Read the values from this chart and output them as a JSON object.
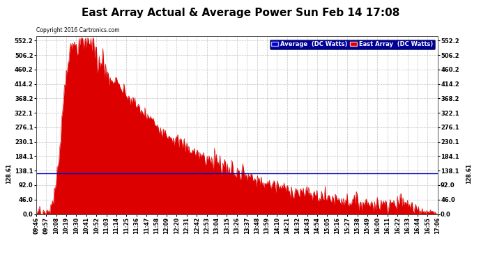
{
  "title": "East Array Actual & Average Power Sun Feb 14 17:08",
  "copyright": "Copyright 2016 Cartronics.com",
  "avg_value": 128.61,
  "y_ticks": [
    0.0,
    46.0,
    92.0,
    138.1,
    184.1,
    230.1,
    276.1,
    322.1,
    368.2,
    414.2,
    460.2,
    506.2,
    552.2
  ],
  "ymax": 565,
  "background_color": "#ffffff",
  "fill_color": "#dd0000",
  "avg_line_color": "#0000bb",
  "grid_color": "#bbbbbb",
  "title_fontsize": 11,
  "tick_labels_x": [
    "09:46",
    "09:57",
    "10:08",
    "10:19",
    "10:30",
    "10:41",
    "10:52",
    "11:03",
    "11:14",
    "11:25",
    "11:36",
    "11:47",
    "11:58",
    "12:09",
    "12:20",
    "12:31",
    "12:42",
    "12:53",
    "13:04",
    "13:15",
    "13:26",
    "13:37",
    "13:48",
    "13:59",
    "14:10",
    "14:21",
    "14:32",
    "14:43",
    "14:54",
    "15:05",
    "15:16",
    "15:27",
    "15:38",
    "15:49",
    "16:00",
    "16:11",
    "16:22",
    "16:33",
    "16:44",
    "16:55",
    "17:06"
  ],
  "legend_labels": [
    "Average  (DC Watts)",
    "East Array  (DC Watts)"
  ],
  "legend_colors": [
    "#0000cc",
    "#dd0000"
  ]
}
